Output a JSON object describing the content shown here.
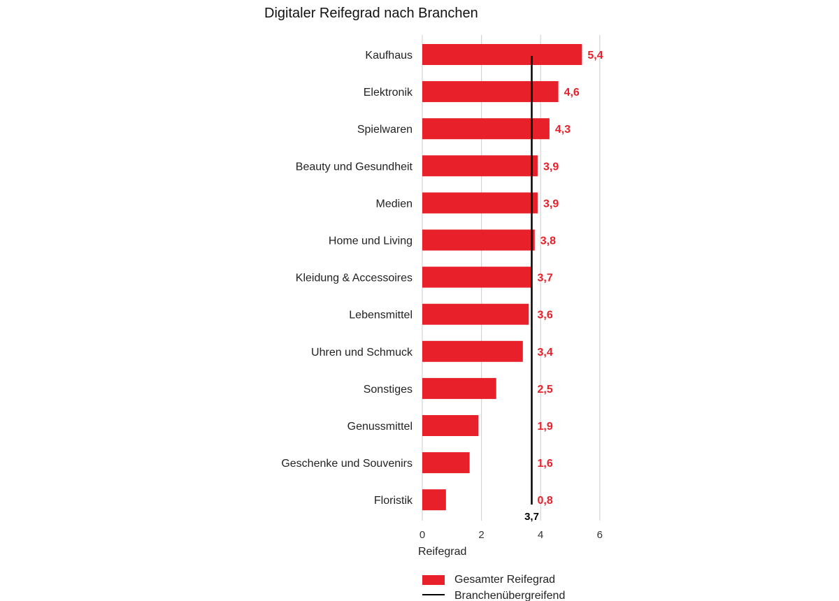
{
  "chart_data": {
    "type": "bar",
    "orientation": "horizontal",
    "title": "Digitaler Reifegrad nach Branchen",
    "xlabel": "Reifegrad",
    "ylabel": "",
    "xlim": [
      0,
      6
    ],
    "xticks": [
      "0",
      "2",
      "4",
      "6"
    ],
    "grid": true,
    "categories": [
      "Kaufhaus",
      "Elektronik",
      "Spielwaren",
      "Beauty und Gesundheit",
      "Medien",
      "Home und Living",
      "Kleidung & Accessoires",
      "Lebensmittel",
      "Uhren und Schmuck",
      "Sonstiges",
      "Genussmittel",
      "Geschenke und Souvenirs",
      "Floristik"
    ],
    "values": [
      5.4,
      4.6,
      4.3,
      3.9,
      3.9,
      3.8,
      3.7,
      3.6,
      3.4,
      2.5,
      1.9,
      1.6,
      0.8
    ],
    "value_labels": [
      "5,4",
      "4,6",
      "4,3",
      "3,9",
      "3,9",
      "3,8",
      "3,7",
      "3,6",
      "3,4",
      "2,5",
      "1,9",
      "1,6",
      "0,8"
    ],
    "series": [
      {
        "name": "Gesamter Reifegrad",
        "color": "#e8202a"
      }
    ],
    "reference_line": {
      "name": "Branchenübergreifend",
      "value": 3.7,
      "label": "3,7",
      "color": "#000000"
    },
    "legend": {
      "position": "bottom",
      "items": [
        "Gesamter Reifegrad",
        "Branchenübergreifend"
      ]
    }
  }
}
